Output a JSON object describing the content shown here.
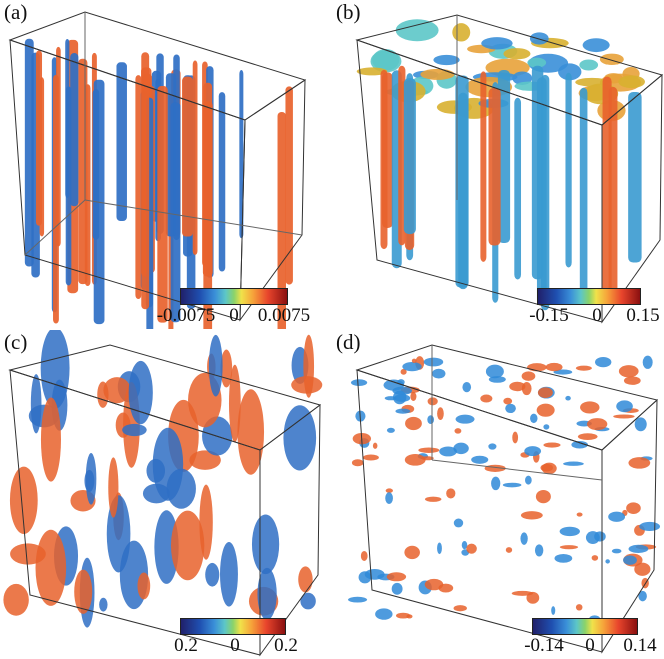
{
  "panels": [
    {
      "label": "(a)",
      "colorbar": {
        "min": "-0.0075",
        "mid": "0",
        "max": "0.0075"
      }
    },
    {
      "label": "(b)",
      "colorbar": {
        "min": "-0.15",
        "mid": "0",
        "max": "0.15"
      }
    },
    {
      "label": "(c)",
      "colorbar": {
        "min": "0.2",
        "mid": "0",
        "max": "0.2"
      }
    },
    {
      "label": "(d)",
      "colorbar": {
        "min": "-0.14",
        "mid": "0",
        "max": "0.14"
      }
    }
  ],
  "colors": {
    "negative": "#2f6fc4",
    "positive": "#e8622c",
    "edge": "#333333"
  }
}
